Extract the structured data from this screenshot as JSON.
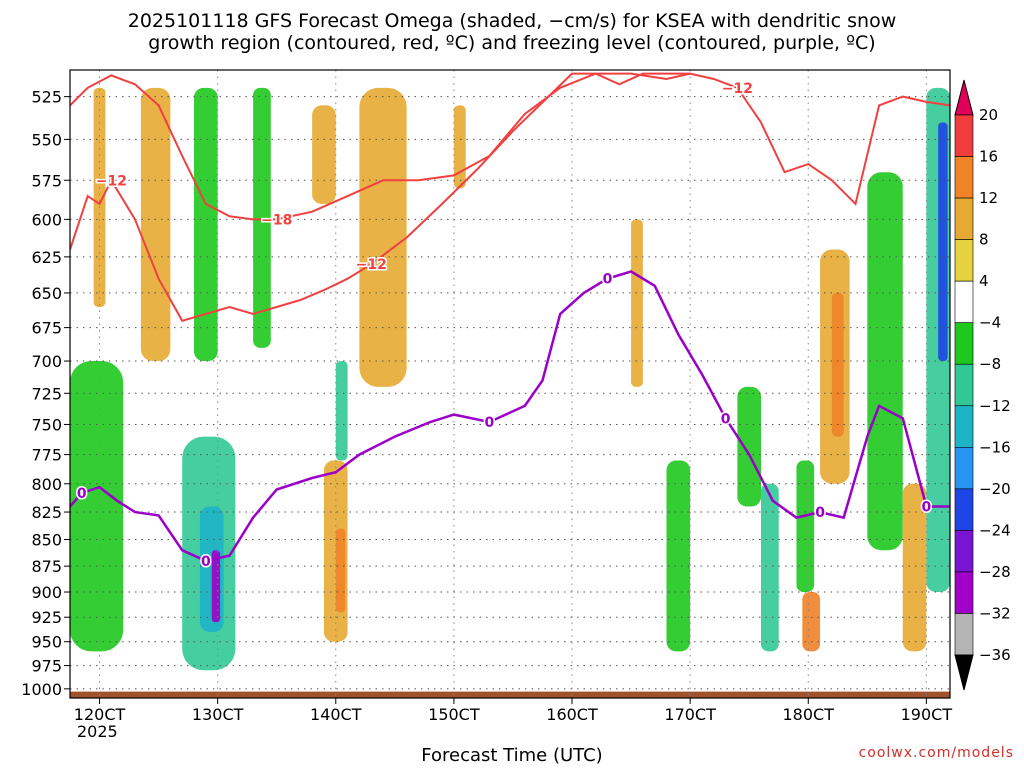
{
  "title_line1": "2025101118 GFS Forecast Omega (shaded, −cm/s) for KSEA with dendritic snow",
  "title_line2": "growth region (contoured, red, ºC) and freezing level (contoured, purple, ºC)",
  "credit": "coolwx.com/models",
  "chart_data": {
    "type": "heatmap",
    "title": "2025101118 GFS Forecast Omega (shaded, −cm/s) for KSEA with dendritic snow growth region (contoured, red, ºC) and freezing level (contoured, purple, ºC)",
    "xlabel": "Forecast Time (UTC)",
    "x_year_label": "2025",
    "x_ticks": [
      "120CT",
      "130CT",
      "140CT",
      "150CT",
      "160CT",
      "170CT",
      "180CT",
      "190CT"
    ],
    "x_range": [
      11.75,
      19.2
    ],
    "y_ticks": [
      525,
      550,
      575,
      600,
      625,
      650,
      675,
      700,
      725,
      750,
      775,
      800,
      825,
      850,
      875,
      900,
      925,
      950,
      975,
      1000
    ],
    "y_range": [
      1010,
      510
    ],
    "grid": true,
    "colorbar": {
      "labels": [
        "20",
        "16",
        "12",
        "8",
        "4",
        "−4",
        "−8",
        "−12",
        "−16",
        "−20",
        "−24",
        "−28",
        "−32",
        "−36"
      ],
      "colors": [
        "#e0005a",
        "#f03c3c",
        "#f08228",
        "#e6aa32",
        "#e6d23c",
        "#ffffff",
        "#1ec81e",
        "#32c896",
        "#1eb4c8",
        "#2896f0",
        "#1e46e6",
        "#7814d2",
        "#a000c8",
        "#b4b4b4",
        "#000000"
      ]
    },
    "freezing_level_series": {
      "label": "0",
      "color": "#9b00c8",
      "x": [
        11.75,
        11.85,
        12.0,
        12.15,
        12.3,
        12.5,
        12.7,
        12.9,
        13.1,
        13.3,
        13.5,
        13.8,
        14.0,
        14.2,
        14.5,
        14.8,
        15.0,
        15.3,
        15.6,
        15.75,
        15.9,
        16.1,
        16.3,
        16.5,
        16.7,
        16.9,
        17.1,
        17.3,
        17.5,
        17.7,
        17.9,
        18.1,
        18.3,
        18.5,
        18.6,
        18.8,
        19.0,
        19.2
      ],
      "y": [
        820,
        808,
        803,
        815,
        825,
        828,
        860,
        870,
        865,
        830,
        805,
        795,
        790,
        775,
        760,
        748,
        742,
        748,
        735,
        715,
        665,
        650,
        640,
        635,
        645,
        680,
        710,
        745,
        775,
        815,
        830,
        825,
        830,
        760,
        735,
        745,
        820,
        820
      ]
    },
    "dgz_series": [
      {
        "label": "−18",
        "color": "#f04040",
        "x": [
          11.75,
          11.9,
          12.1,
          12.3,
          12.5,
          12.7,
          12.9,
          13.1,
          13.3,
          13.5,
          13.8,
          14.1,
          14.4,
          14.7,
          15.0,
          15.3,
          15.6,
          15.9,
          16.2,
          16.5,
          16.8,
          17.0
        ],
        "y": [
          530,
          520,
          513,
          518,
          530,
          560,
          590,
          598,
          600,
          600,
          595,
          585,
          575,
          575,
          572,
          560,
          535,
          520,
          512,
          512,
          515,
          512
        ]
      },
      {
        "label": "−12",
        "color": "#f04040",
        "x": [
          11.75,
          11.9,
          12.0,
          12.1,
          12.3,
          12.5,
          12.7,
          12.9,
          13.1,
          13.3,
          13.5,
          13.7,
          13.9,
          14.1,
          14.3,
          14.6,
          14.9,
          15.2,
          15.5,
          15.8,
          16.0,
          16.2,
          16.4,
          16.6,
          16.8,
          17.0,
          17.2,
          17.4,
          17.6,
          17.8,
          18.0,
          18.2,
          18.4,
          18.6,
          18.8,
          19.0,
          19.2
        ],
        "y": [
          620,
          585,
          590,
          575,
          600,
          640,
          670,
          665,
          660,
          665,
          660,
          655,
          648,
          640,
          630,
          612,
          590,
          568,
          545,
          525,
          512,
          512,
          518,
          512,
          512,
          512,
          515,
          520,
          540,
          570,
          565,
          575,
          590,
          530,
          525,
          528,
          530
        ]
      }
    ]
  }
}
